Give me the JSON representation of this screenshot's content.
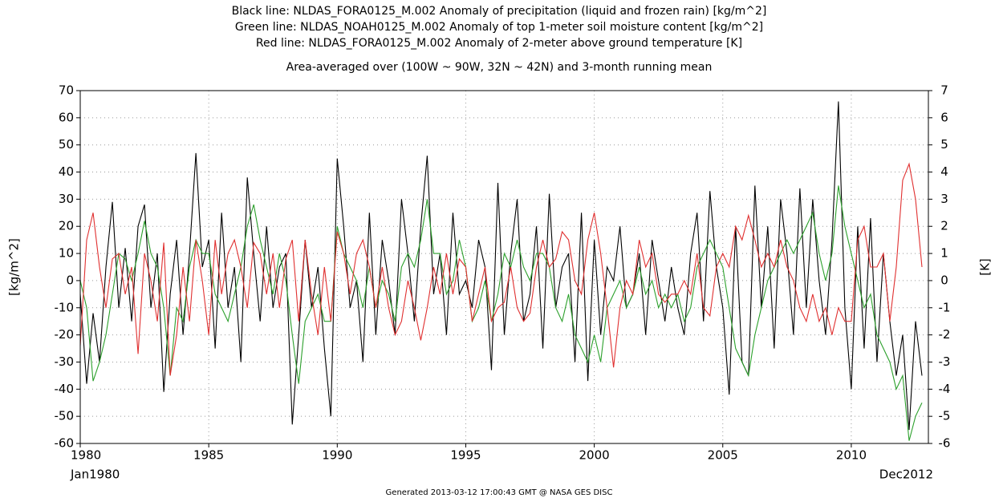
{
  "chart_data": {
    "type": "line",
    "title_lines": [
      "Black line: NLDAS_FORA0125_M.002 Anomaly of precipitation (liquid and frozen rain) [kg/m^2]",
      "Green line: NLDAS_NOAH0125_M.002 Anomaly of top 1-meter soil moisture content [kg/m^2]",
      "Red line: NLDAS_FORA0125_M.002 Anomaly of 2-meter above ground temperature [K]",
      "Area-averaged over (100W ~ 90W, 32N ~ 42N) and 3-month running mean"
    ],
    "ylabel": "[kg/m^2]",
    "y2label": "[K]",
    "x_start_label": "Jan1980",
    "x_end_label": "Dec2012",
    "footer": "Generated 2013-03-12 17:00:43 GMT @ NASA GES DISC",
    "grid": true,
    "xlim": [
      1980,
      2013
    ],
    "xticks": [
      1980,
      1985,
      1990,
      1995,
      2000,
      2005,
      2010
    ],
    "ylim": [
      -60,
      70
    ],
    "yticks": [
      -60,
      -50,
      -40,
      -30,
      -20,
      -10,
      0,
      10,
      20,
      30,
      40,
      50,
      60,
      70
    ],
    "y2lim": [
      -6,
      7
    ],
    "y2ticks": [
      -6,
      -5,
      -4,
      -3,
      -2,
      -1,
      0,
      1,
      2,
      3,
      4,
      5,
      6,
      7
    ],
    "x": [
      1980,
      1980.25,
      1980.5,
      1980.75,
      1981,
      1981.25,
      1981.5,
      1981.75,
      1982,
      1982.25,
      1982.5,
      1982.75,
      1983,
      1983.25,
      1983.5,
      1983.75,
      1984,
      1984.25,
      1984.5,
      1984.75,
      1985,
      1985.25,
      1985.5,
      1985.75,
      1986,
      1986.25,
      1986.5,
      1986.75,
      1987,
      1987.25,
      1987.5,
      1987.75,
      1988,
      1988.25,
      1988.5,
      1988.75,
      1989,
      1989.25,
      1989.5,
      1989.75,
      1990,
      1990.25,
      1990.5,
      1990.75,
      1991,
      1991.25,
      1991.5,
      1991.75,
      1992,
      1992.25,
      1992.5,
      1992.75,
      1993,
      1993.25,
      1993.5,
      1993.75,
      1994,
      1994.25,
      1994.5,
      1994.75,
      1995,
      1995.25,
      1995.5,
      1995.75,
      1996,
      1996.25,
      1996.5,
      1996.75,
      1997,
      1997.25,
      1997.5,
      1997.75,
      1998,
      1998.25,
      1998.5,
      1998.75,
      1999,
      1999.25,
      1999.5,
      1999.75,
      2000,
      2000.25,
      2000.5,
      2000.75,
      2001,
      2001.25,
      2001.5,
      2001.75,
      2002,
      2002.25,
      2002.5,
      2002.75,
      2003,
      2003.25,
      2003.5,
      2003.75,
      2004,
      2004.25,
      2004.5,
      2004.75,
      2005,
      2005.25,
      2005.5,
      2005.75,
      2006,
      2006.25,
      2006.5,
      2006.75,
      2007,
      2007.25,
      2007.5,
      2007.75,
      2008,
      2008.25,
      2008.5,
      2008.75,
      2009,
      2009.25,
      2009.5,
      2009.75,
      2010,
      2010.25,
      2010.5,
      2010.75,
      2011,
      2011.25,
      2011.5,
      2011.75,
      2012,
      2012.25,
      2012.5,
      2012.75
    ],
    "series": [
      {
        "color": "#000000",
        "values": [
          -5,
          -38,
          -12,
          -30,
          5,
          29,
          -10,
          12,
          -15,
          20,
          28,
          -10,
          10,
          -41,
          -5,
          15,
          -20,
          10,
          47,
          5,
          15,
          -25,
          25,
          -10,
          5,
          -30,
          38,
          10,
          -15,
          20,
          -10,
          5,
          10,
          -53,
          -20,
          15,
          -10,
          5,
          -25,
          -50,
          45,
          20,
          -10,
          0,
          -30,
          25,
          -20,
          15,
          0,
          -20,
          30,
          10,
          -15,
          20,
          46,
          -5,
          10,
          -20,
          25,
          -5,
          0,
          -10,
          15,
          5,
          -33,
          36,
          -20,
          10,
          30,
          -15,
          -5,
          20,
          -25,
          32,
          -10,
          5,
          10,
          -30,
          25,
          -37,
          15,
          -20,
          5,
          0,
          20,
          -10,
          -5,
          10,
          -20,
          15,
          0,
          -15,
          5,
          -10,
          -20,
          10,
          25,
          -15,
          33,
          5,
          -10,
          -42,
          20,
          -30,
          -35,
          35,
          -10,
          20,
          -25,
          30,
          10,
          -20,
          34,
          -10,
          30,
          0,
          -20,
          15,
          66,
          -10,
          -40,
          20,
          -25,
          23,
          -30,
          10,
          -15,
          -35,
          -20,
          -55,
          -15,
          -35
        ]
      },
      {
        "color": "#2ca02c",
        "values": [
          0,
          -10,
          -37,
          -30,
          -20,
          -5,
          10,
          8,
          0,
          10,
          22,
          10,
          5,
          -10,
          -35,
          -10,
          -15,
          5,
          15,
          10,
          10,
          -5,
          -10,
          -15,
          -5,
          5,
          20,
          28,
          15,
          5,
          -5,
          10,
          0,
          -20,
          -38,
          -15,
          -10,
          -5,
          -15,
          -15,
          20,
          10,
          5,
          0,
          -10,
          5,
          -10,
          0,
          -5,
          -15,
          5,
          10,
          5,
          15,
          30,
          10,
          10,
          -5,
          0,
          15,
          5,
          -15,
          -10,
          0,
          -15,
          -5,
          10,
          5,
          15,
          5,
          0,
          10,
          10,
          5,
          -10,
          -15,
          -5,
          -20,
          -25,
          -30,
          -20,
          -30,
          -10,
          -5,
          0,
          -10,
          -5,
          5,
          -5,
          0,
          -10,
          -5,
          -10,
          -5,
          -15,
          -10,
          5,
          10,
          15,
          10,
          5,
          -10,
          -25,
          -30,
          -35,
          -20,
          -10,
          0,
          5,
          10,
          15,
          10,
          15,
          20,
          25,
          10,
          0,
          10,
          35,
          20,
          10,
          0,
          -10,
          -5,
          -20,
          -25,
          -30,
          -40,
          -35,
          -59,
          -50,
          -45
        ]
      },
      {
        "color": "#e03030",
        "axis": "y2",
        "values": [
          -2.4,
          1.5,
          2.5,
          0.5,
          -1.0,
          0.8,
          1.0,
          -0.5,
          0.5,
          -2.7,
          1.0,
          0.0,
          -1.5,
          1.4,
          -3.5,
          -2.0,
          0.5,
          -1.5,
          1.5,
          0.0,
          -2.0,
          1.5,
          -0.5,
          1.0,
          1.5,
          0.5,
          -1.0,
          1.4,
          1.0,
          -0.5,
          1.0,
          -1.0,
          0.8,
          1.5,
          -1.5,
          1.5,
          -0.5,
          -2.0,
          0.5,
          -1.5,
          1.8,
          1.0,
          -0.5,
          1.0,
          1.5,
          0.5,
          -1.0,
          0.5,
          -1.0,
          -2.0,
          -1.5,
          0.0,
          -1.0,
          -2.2,
          -1.0,
          0.5,
          -0.5,
          1.0,
          -0.5,
          0.8,
          0.5,
          -1.5,
          -0.5,
          0.5,
          -1.5,
          -1.0,
          -0.8,
          0.5,
          -1.0,
          -1.5,
          -1.2,
          0.5,
          1.5,
          0.5,
          0.8,
          1.8,
          1.5,
          0.0,
          -0.5,
          1.5,
          2.5,
          1.0,
          -1.0,
          -3.2,
          -1.0,
          0.0,
          -0.5,
          1.5,
          0.5,
          1.0,
          -0.5,
          -0.8,
          -0.5,
          -0.5,
          0.0,
          -0.5,
          1.0,
          -1.0,
          -1.3,
          0.5,
          1.0,
          0.5,
          2.0,
          1.5,
          2.4,
          1.5,
          0.5,
          1.0,
          0.5,
          1.5,
          0.5,
          0.0,
          -1.0,
          -1.5,
          -0.5,
          -1.5,
          -1.0,
          -2.0,
          -1.0,
          -1.5,
          -1.5,
          1.5,
          2.0,
          0.5,
          0.5,
          1.0,
          -1.5,
          0.5,
          3.7,
          4.3,
          3.0,
          0.5
        ]
      }
    ]
  }
}
